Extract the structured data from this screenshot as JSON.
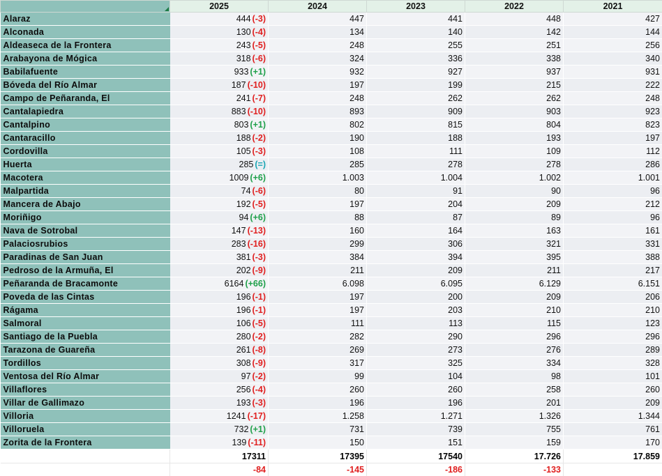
{
  "headers": [
    "",
    "2025",
    "2024",
    "2023",
    "2022",
    "2021"
  ],
  "rows": [
    {
      "name": "Alaraz",
      "v2025": "444",
      "diff": "(-3)",
      "sign": "neg",
      "v2024": "447",
      "v2023": "441",
      "v2022": "448",
      "v2021": "427"
    },
    {
      "name": "Alconada",
      "v2025": "130",
      "diff": "(-4)",
      "sign": "neg",
      "v2024": "134",
      "v2023": "140",
      "v2022": "142",
      "v2021": "144"
    },
    {
      "name": "Aldeaseca de la Frontera",
      "v2025": "243",
      "diff": "(-5)",
      "sign": "neg",
      "v2024": "248",
      "v2023": "255",
      "v2022": "251",
      "v2021": "256"
    },
    {
      "name": "Arabayona de Mógica",
      "v2025": "318",
      "diff": "(-6)",
      "sign": "neg",
      "v2024": "324",
      "v2023": "336",
      "v2022": "338",
      "v2021": "340"
    },
    {
      "name": "Babilafuente",
      "v2025": "933",
      "diff": "(+1)",
      "sign": "pos",
      "v2024": "932",
      "v2023": "927",
      "v2022": "937",
      "v2021": "931"
    },
    {
      "name": "Bóveda del Río Almar",
      "v2025": "187",
      "diff": "(-10)",
      "sign": "neg",
      "v2024": "197",
      "v2023": "199",
      "v2022": "215",
      "v2021": "222"
    },
    {
      "name": "Campo de Peñaranda, El",
      "v2025": "241",
      "diff": "(-7)",
      "sign": "neg",
      "v2024": "248",
      "v2023": "262",
      "v2022": "262",
      "v2021": "248"
    },
    {
      "name": "Cantalapiedra",
      "v2025": "883",
      "diff": "(-10)",
      "sign": "neg",
      "v2024": "893",
      "v2023": "909",
      "v2022": "903",
      "v2021": "923"
    },
    {
      "name": "Cantalpino",
      "v2025": "803",
      "diff": "(+1)",
      "sign": "pos",
      "v2024": "802",
      "v2023": "815",
      "v2022": "804",
      "v2021": "823"
    },
    {
      "name": "Cantaracillo",
      "v2025": "188",
      "diff": "(-2)",
      "sign": "neg",
      "v2024": "190",
      "v2023": "188",
      "v2022": "193",
      "v2021": "197"
    },
    {
      "name": "Cordovilla",
      "v2025": "105",
      "diff": "(-3)",
      "sign": "neg",
      "v2024": "108",
      "v2023": "111",
      "v2022": "109",
      "v2021": "112"
    },
    {
      "name": "Huerta",
      "v2025": "285",
      "diff": "(=)",
      "sign": "eq",
      "v2024": "285",
      "v2023": "278",
      "v2022": "278",
      "v2021": "286"
    },
    {
      "name": "Macotera",
      "v2025": "1009",
      "diff": "(+6)",
      "sign": "pos",
      "v2024": "1.003",
      "v2023": "1.004",
      "v2022": "1.002",
      "v2021": "1.001"
    },
    {
      "name": "Malpartida",
      "v2025": "74",
      "diff": "(-6)",
      "sign": "neg",
      "v2024": "80",
      "v2023": "91",
      "v2022": "90",
      "v2021": "96"
    },
    {
      "name": "Mancera de Abajo",
      "v2025": "192",
      "diff": "(-5)",
      "sign": "neg",
      "v2024": "197",
      "v2023": "204",
      "v2022": "209",
      "v2021": "212"
    },
    {
      "name": "Moriñigo",
      "v2025": "94",
      "diff": "(+6)",
      "sign": "pos",
      "v2024": "88",
      "v2023": "87",
      "v2022": "89",
      "v2021": "96"
    },
    {
      "name": "Nava de Sotrobal",
      "v2025": "147",
      "diff": "(-13)",
      "sign": "neg",
      "v2024": "160",
      "v2023": "164",
      "v2022": "163",
      "v2021": "161"
    },
    {
      "name": "Palaciosrubios",
      "v2025": "283",
      "diff": "(-16)",
      "sign": "neg",
      "v2024": "299",
      "v2023": "306",
      "v2022": "321",
      "v2021": "331"
    },
    {
      "name": "Paradinas de San Juan",
      "v2025": "381",
      "diff": "(-3)",
      "sign": "neg",
      "v2024": "384",
      "v2023": "394",
      "v2022": "395",
      "v2021": "388"
    },
    {
      "name": "Pedroso de la Armuña, El",
      "v2025": "202",
      "diff": "(-9)",
      "sign": "neg",
      "v2024": "211",
      "v2023": "209",
      "v2022": "211",
      "v2021": "217"
    },
    {
      "name": "Peñaranda de Bracamonte",
      "v2025": "6164",
      "diff": "(+66)",
      "sign": "pos",
      "v2024": "6.098",
      "v2023": "6.095",
      "v2022": "6.129",
      "v2021": "6.151"
    },
    {
      "name": "Poveda de las Cintas",
      "v2025": "196",
      "diff": "(-1)",
      "sign": "neg",
      "v2024": "197",
      "v2023": "200",
      "v2022": "209",
      "v2021": "206"
    },
    {
      "name": "Rágama",
      "v2025": "196",
      "diff": "(-1)",
      "sign": "neg",
      "v2024": "197",
      "v2023": "203",
      "v2022": "210",
      "v2021": "210"
    },
    {
      "name": "Salmoral",
      "v2025": "106",
      "diff": "(-5)",
      "sign": "neg",
      "v2024": "111",
      "v2023": "113",
      "v2022": "115",
      "v2021": "123"
    },
    {
      "name": "Santiago de la Puebla",
      "v2025": "280",
      "diff": "(-2)",
      "sign": "neg",
      "v2024": "282",
      "v2023": "290",
      "v2022": "296",
      "v2021": "296"
    },
    {
      "name": "Tarazona de Guareña",
      "v2025": "261",
      "diff": "(-8)",
      "sign": "neg",
      "v2024": "269",
      "v2023": "273",
      "v2022": "276",
      "v2021": "289"
    },
    {
      "name": "Tordillos",
      "v2025": "308",
      "diff": "(-9)",
      "sign": "neg",
      "v2024": "317",
      "v2023": "325",
      "v2022": "334",
      "v2021": "328"
    },
    {
      "name": "Ventosa del Río Almar",
      "v2025": "97",
      "diff": "(-2)",
      "sign": "neg",
      "v2024": "99",
      "v2023": "104",
      "v2022": "98",
      "v2021": "101"
    },
    {
      "name": "Villaflores",
      "v2025": "256",
      "diff": "(-4)",
      "sign": "neg",
      "v2024": "260",
      "v2023": "260",
      "v2022": "258",
      "v2021": "260"
    },
    {
      "name": "Villar de Gallimazo",
      "v2025": "193",
      "diff": "(-3)",
      "sign": "neg",
      "v2024": "196",
      "v2023": "196",
      "v2022": "201",
      "v2021": "209"
    },
    {
      "name": "Villoria",
      "v2025": "1241",
      "diff": "(-17)",
      "sign": "neg",
      "v2024": "1.258",
      "v2023": "1.271",
      "v2022": "1.326",
      "v2021": "1.344"
    },
    {
      "name": "Villoruela",
      "v2025": "732",
      "diff": "(+1)",
      "sign": "pos",
      "v2024": "731",
      "v2023": "739",
      "v2022": "755",
      "v2021": "761"
    },
    {
      "name": "Zorita de la Frontera",
      "v2025": "139",
      "diff": "(-11)",
      "sign": "neg",
      "v2024": "150",
      "v2023": "151",
      "v2022": "159",
      "v2021": "170"
    }
  ],
  "totals": {
    "v2025": "17311",
    "v2024": "17395",
    "v2023": "17540",
    "v2022": "17.726",
    "v2021": "17.859"
  },
  "changes": {
    "v2025": "-84",
    "v2024": "-145",
    "v2023": "-186",
    "v2022": "-133",
    "v2021": ""
  },
  "colors": {
    "name_bg": "#8fc1ba",
    "header_bg": "#e3f1e8",
    "negative": "#e02020",
    "positive": "#1fa04a",
    "equal": "#1aa6b4"
  }
}
